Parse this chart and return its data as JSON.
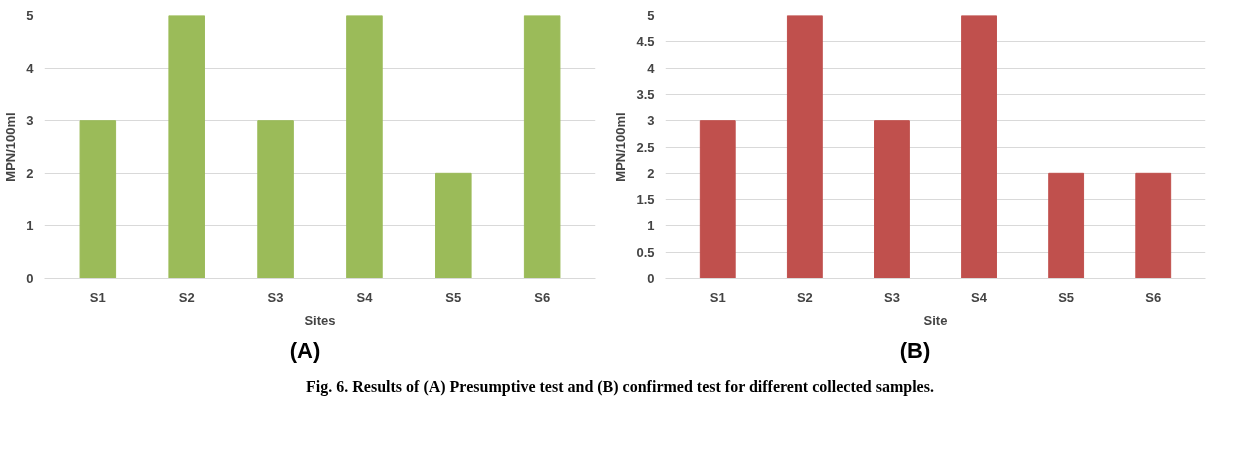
{
  "chart_data": [
    {
      "type": "bar",
      "xlabel": "Sites",
      "ylabel": "MPN/100ml",
      "categories": [
        "S1",
        "S2",
        "S3",
        "S4",
        "S5",
        "S6"
      ],
      "series": [
        {
          "color": "#9bbb59",
          "values": [
            3,
            5,
            3,
            5,
            2,
            5
          ]
        }
      ],
      "ylim": [
        0,
        5
      ],
      "yticks": [
        0,
        1,
        2,
        3,
        4,
        5
      ],
      "grid": "y",
      "annotations": [
        "(A)",
        "Fig. 6. Results of (A) Presumptive test and (B) confirmed test for different collected samples."
      ]
    },
    {
      "type": "bar",
      "xlabel": "Site",
      "ylabel": "MPN/100ml",
      "categories": [
        "S1",
        "S2",
        "S3",
        "S4",
        "S5",
        "S6"
      ],
      "series": [
        {
          "color": "#c0504d",
          "values": [
            3,
            5,
            3,
            5,
            2,
            2
          ]
        }
      ],
      "ylim": [
        0,
        5
      ],
      "yticks": [
        0,
        0.5,
        1,
        1.5,
        2,
        2.5,
        3,
        3.5,
        4,
        4.5,
        5
      ],
      "grid": "y",
      "annotations": [
        "(B)"
      ]
    }
  ]
}
